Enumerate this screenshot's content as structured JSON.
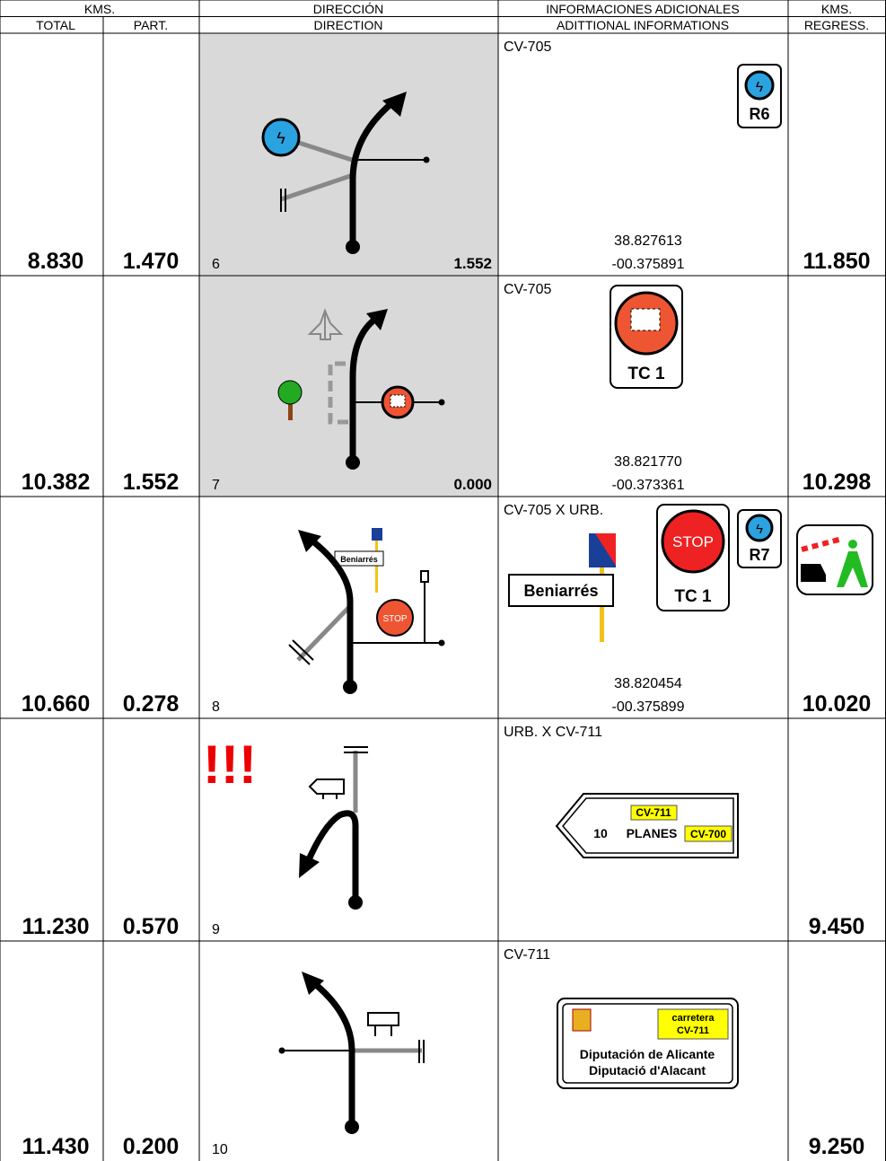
{
  "header": {
    "kms": "KMS.",
    "total": "TOTAL",
    "part": "PART.",
    "direccion": "DIRECCIÓN",
    "direction": "DIRECTION",
    "info_es": "INFORMACIONES ADICIONALES",
    "info_en": "ADITTIONAL INFORMATIONS",
    "kms_regress": "KMS.",
    "regress": "REGRESS."
  },
  "rows": [
    {
      "total": "8.830",
      "part": "1.470",
      "number": "6",
      "distance": "1.552",
      "road": "CV-705",
      "lat": "38.827613",
      "lon": "-00.375891",
      "regress": "11.850",
      "signs": [
        "R6"
      ]
    },
    {
      "total": "10.382",
      "part": "1.552",
      "number": "7",
      "distance": "0.000",
      "road": "CV-705",
      "lat": "38.821770",
      "lon": "-00.373361",
      "regress": "10.298",
      "signs": [
        "TC 1"
      ]
    },
    {
      "total": "10.660",
      "part": "0.278",
      "number": "8",
      "road": "CV-705 X URB.",
      "lat": "38.820454",
      "lon": "-00.375899",
      "regress": "10.020",
      "signs": [
        "STOP",
        "TC 1",
        "R7",
        "Beniarrés"
      ]
    },
    {
      "total": "11.230",
      "part": "0.570",
      "number": "9",
      "warning": "!!!",
      "road": "URB. X CV-711",
      "regress": "9.450",
      "signs": [
        "CV-711",
        "10",
        "PLANES",
        "CV-700"
      ]
    },
    {
      "total": "11.430",
      "part": "0.200",
      "number": "10",
      "road": "CV-711",
      "regress": "9.250",
      "signs": [
        "carretera",
        "CV-711",
        "Diputación de Alicante",
        "Diputació d'Alacant"
      ]
    }
  ]
}
